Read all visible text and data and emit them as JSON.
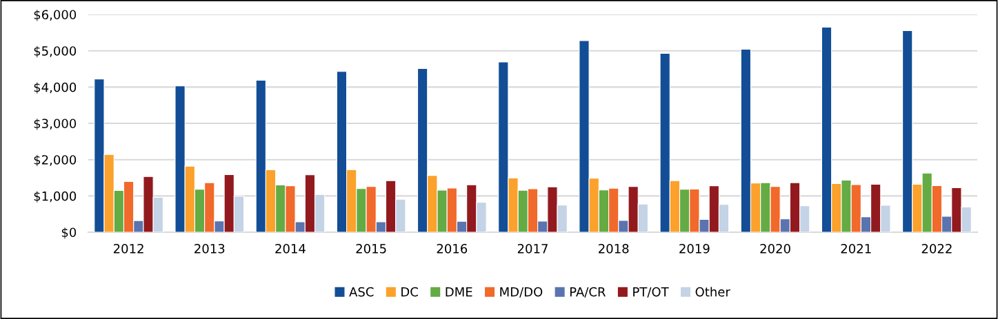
{
  "chart_data": {
    "type": "bar",
    "categories": [
      "2012",
      "2013",
      "2014",
      "2015",
      "2016",
      "2017",
      "2018",
      "2019",
      "2020",
      "2021",
      "2022"
    ],
    "series": [
      {
        "name": "ASC",
        "color": "#134d96",
        "values": [
          4220,
          4030,
          4190,
          4430,
          4510,
          4690,
          5280,
          4930,
          5040,
          5650,
          5555
        ]
      },
      {
        "name": "DC",
        "color": "#fba12c",
        "values": [
          2140,
          1820,
          1720,
          1725,
          1565,
          1495,
          1485,
          1420,
          1355,
          1340,
          1320
        ]
      },
      {
        "name": "DME",
        "color": "#64ab44",
        "values": [
          1150,
          1185,
          1300,
          1200,
          1160,
          1155,
          1165,
          1185,
          1365,
          1435,
          1630
        ]
      },
      {
        "name": "MD/DO",
        "color": "#f1692b",
        "values": [
          1395,
          1365,
          1280,
          1260,
          1215,
          1195,
          1210,
          1190,
          1260,
          1310,
          1285
        ]
      },
      {
        "name": "PA/CR",
        "color": "#5a74b0",
        "values": [
          320,
          310,
          285,
          285,
          300,
          305,
          325,
          350,
          365,
          425,
          440
        ]
      },
      {
        "name": "PT/OT",
        "color": "#921a1e",
        "values": [
          1535,
          1585,
          1580,
          1420,
          1305,
          1250,
          1260,
          1280,
          1365,
          1320,
          1225
        ]
      },
      {
        "name": "Other",
        "color": "#c4d3e6",
        "values": [
          960,
          995,
          1040,
          910,
          820,
          745,
          775,
          765,
          725,
          740,
          695
        ]
      }
    ],
    "ylim": [
      0,
      6000
    ],
    "yticks": [
      {
        "value": 0,
        "label": "$0"
      },
      {
        "value": 1000,
        "label": "$1,000"
      },
      {
        "value": 2000,
        "label": "$2,000"
      },
      {
        "value": 3000,
        "label": "$3,000"
      },
      {
        "value": 4000,
        "label": "$4,000"
      },
      {
        "value": 5000,
        "label": "$5,000"
      },
      {
        "value": 6000,
        "label": "$6,000"
      }
    ],
    "grid": "y",
    "legend": "bottom"
  }
}
